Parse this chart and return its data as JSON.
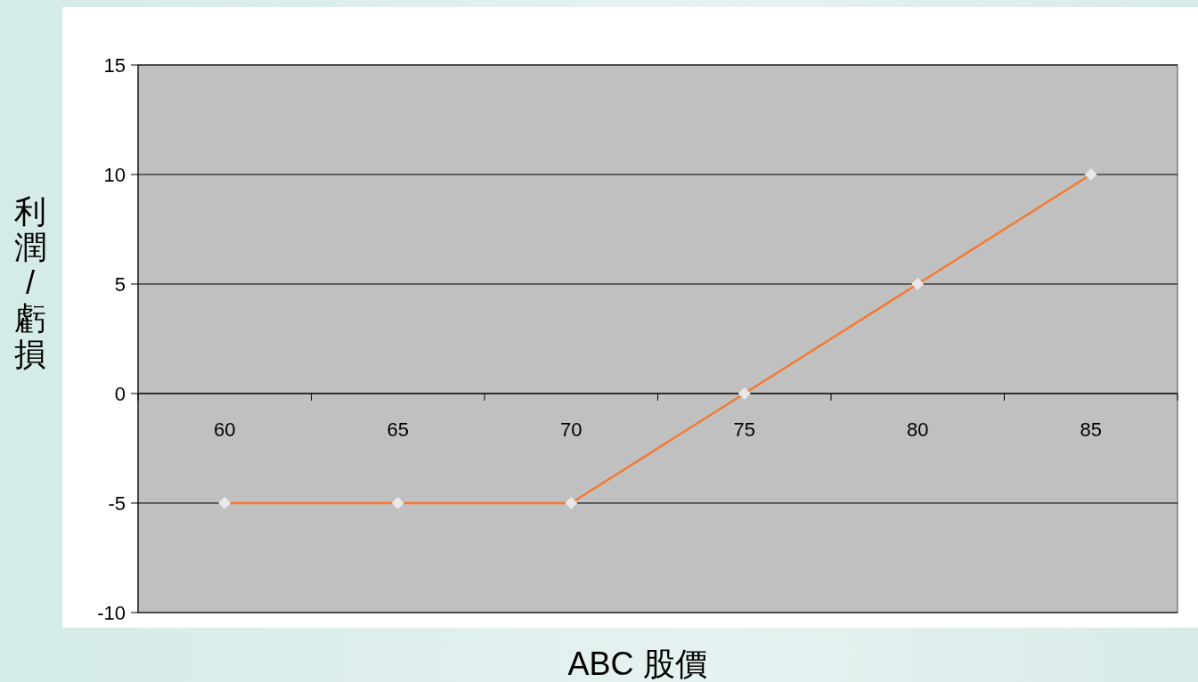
{
  "chart_data": {
    "type": "line",
    "xlabel": "ABC 股價",
    "ylabel": "利潤/虧損",
    "categories": [
      "60",
      "65",
      "70",
      "75",
      "80",
      "85"
    ],
    "values": [
      -5,
      -5,
      -5,
      0,
      5,
      10
    ],
    "color": "#f47a30",
    "ylim": [
      -10,
      15
    ],
    "yticks": [
      -10,
      -5,
      0,
      5,
      10,
      15
    ],
    "grid": "y",
    "marker": "diamond"
  }
}
